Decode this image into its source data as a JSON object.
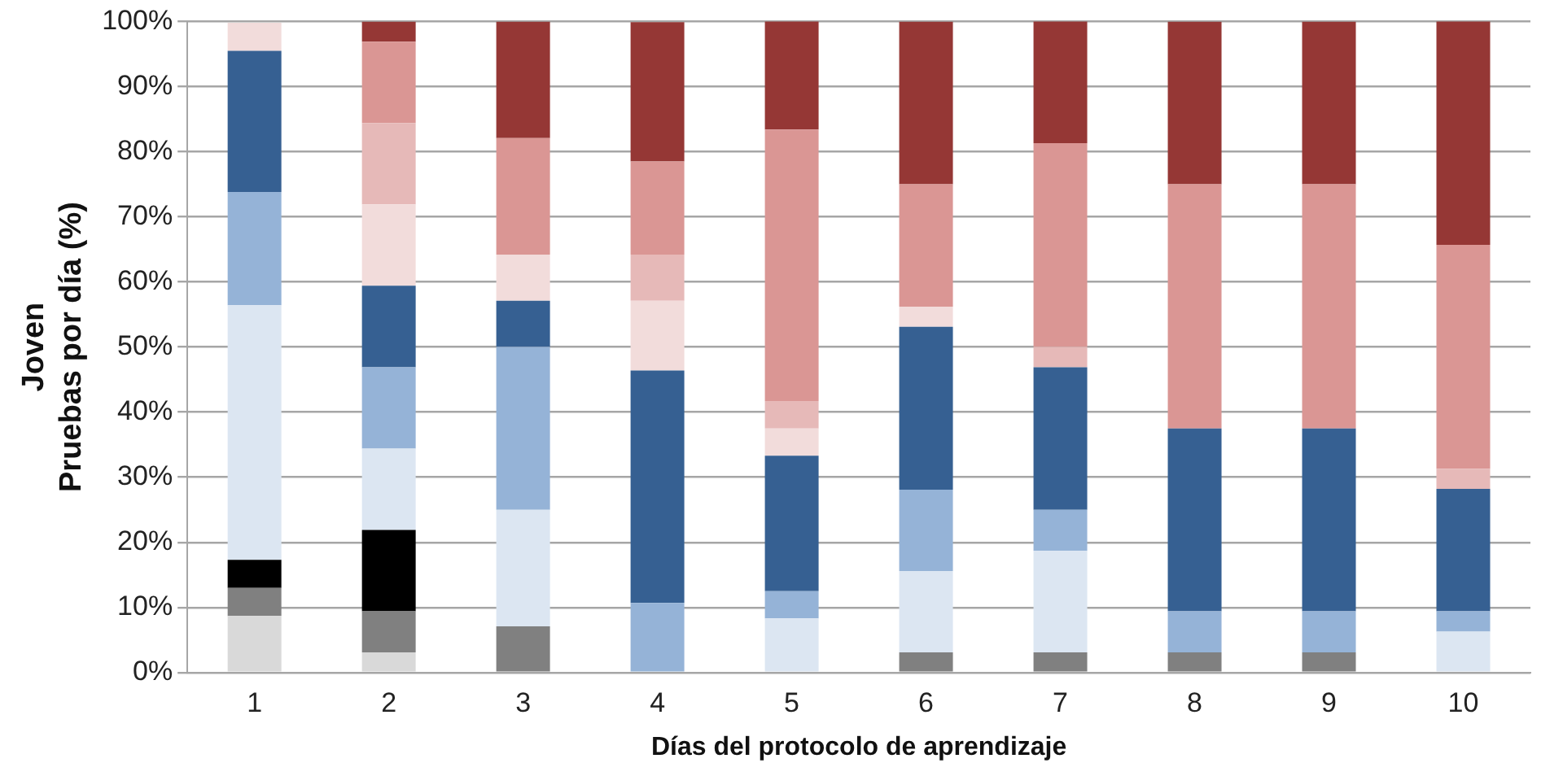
{
  "chart_data": {
    "type": "bar",
    "stacked": true,
    "xlabel": "Días del protocolo de aprendizaje",
    "ylabel": "Joven\nPruebas por día (%)",
    "categories": [
      "1",
      "2",
      "3",
      "4",
      "5",
      "6",
      "7",
      "8",
      "9",
      "10"
    ],
    "series": [
      {
        "color": "#d9d9d9",
        "values": [
          8.7,
          3.1,
          0,
          0,
          0,
          0,
          0,
          0,
          0,
          0
        ]
      },
      {
        "color": "#808080",
        "values": [
          4.3,
          6.3,
          7.1,
          0,
          0,
          3.1,
          3.1,
          3.1,
          3.1,
          0
        ]
      },
      {
        "color": "#000000",
        "values": [
          4.3,
          12.5,
          0,
          0,
          0,
          0,
          0,
          0,
          0,
          0
        ]
      },
      {
        "color": "#dce6f2",
        "values": [
          39.1,
          12.5,
          17.9,
          0,
          8.3,
          12.5,
          15.6,
          0,
          0,
          6.3
        ]
      },
      {
        "color": "#95b3d7",
        "values": [
          17.4,
          12.5,
          25,
          10.7,
          4.2,
          12.5,
          6.3,
          6.3,
          6.3,
          3.1
        ]
      },
      {
        "color": "#366092",
        "values": [
          21.7,
          12.5,
          7.1,
          35.7,
          20.8,
          25,
          21.9,
          28.1,
          28.1,
          18.8
        ]
      },
      {
        "color": "#f2dcdb",
        "values": [
          4.3,
          12.5,
          7.1,
          10.7,
          4.2,
          3.1,
          0,
          0,
          0,
          0
        ]
      },
      {
        "color": "#e6b9b8",
        "values": [
          0,
          12.5,
          0,
          7.1,
          4.2,
          0,
          3.1,
          0,
          0,
          3.1
        ]
      },
      {
        "color": "#da9694",
        "values": [
          0,
          12.5,
          17.9,
          14.3,
          41.7,
          18.8,
          31.3,
          37.5,
          37.5,
          34.4
        ]
      },
      {
        "color": "#953735",
        "values": [
          0,
          3.1,
          17.9,
          21.4,
          16.7,
          25,
          18.8,
          25,
          25,
          34.4
        ]
      }
    ],
    "ylim": [
      0,
      100
    ],
    "yticks": [
      {
        "value": 0,
        "label": "0%"
      },
      {
        "value": 10,
        "label": "10%"
      },
      {
        "value": 20,
        "label": "20%"
      },
      {
        "value": 30,
        "label": "30%"
      },
      {
        "value": 40,
        "label": "40%"
      },
      {
        "value": 50,
        "label": "50%"
      },
      {
        "value": 60,
        "label": "60%"
      },
      {
        "value": 70,
        "label": "70%"
      },
      {
        "value": 80,
        "label": "80%"
      },
      {
        "value": 90,
        "label": "90%"
      },
      {
        "value": 100,
        "label": "100%"
      }
    ],
    "grid": "y",
    "legend": false
  }
}
